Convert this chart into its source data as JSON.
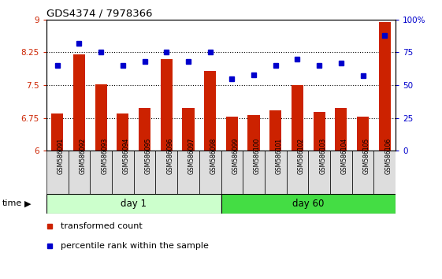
{
  "title": "GDS4374 / 7978366",
  "samples": [
    "GSM586091",
    "GSM586092",
    "GSM586093",
    "GSM586094",
    "GSM586095",
    "GSM586096",
    "GSM586097",
    "GSM586098",
    "GSM586099",
    "GSM586100",
    "GSM586101",
    "GSM586102",
    "GSM586103",
    "GSM586104",
    "GSM586105",
    "GSM586106"
  ],
  "bar_values": [
    6.85,
    8.2,
    7.52,
    6.85,
    6.97,
    8.1,
    6.97,
    7.82,
    6.77,
    6.82,
    6.93,
    7.5,
    6.88,
    6.97,
    6.77,
    8.95
  ],
  "dot_values": [
    65,
    82,
    75,
    65,
    68,
    75,
    68,
    75,
    55,
    58,
    65,
    70,
    65,
    67,
    57,
    88
  ],
  "bar_color": "#cc2200",
  "dot_color": "#0000cc",
  "ylim_left": [
    6,
    9
  ],
  "ylim_right": [
    0,
    100
  ],
  "yticks_left": [
    6,
    6.75,
    7.5,
    8.25,
    9
  ],
  "yticks_right": [
    0,
    25,
    50,
    75,
    100
  ],
  "ytick_labels_left": [
    "6",
    "6.75",
    "7.5",
    "8.25",
    "9"
  ],
  "ytick_labels_right": [
    "0",
    "25",
    "50",
    "75",
    "100%"
  ],
  "hlines": [
    6.75,
    7.5,
    8.25
  ],
  "day1_samples": 8,
  "day60_samples": 8,
  "day1_label": "day 1",
  "day60_label": "day 60",
  "time_label": "time",
  "legend_bar": "transformed count",
  "legend_dot": "percentile rank within the sample",
  "bar_width": 0.55,
  "day1_bg": "#ccffcc",
  "day60_bg": "#44dd44",
  "xtick_bg": "#dddddd"
}
